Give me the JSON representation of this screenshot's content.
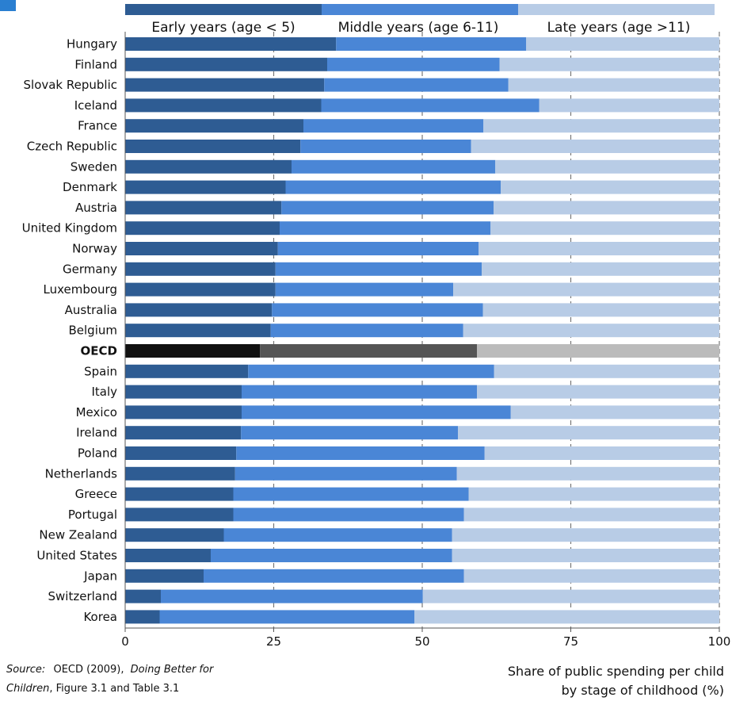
{
  "chart_data": {
    "type": "bar",
    "orientation": "horizontal",
    "stacked": true,
    "categories": [
      "Hungary",
      "Finland",
      "Slovak Republic",
      "Iceland",
      "France",
      "Czech Republic",
      "Sweden",
      "Denmark",
      "Austria",
      "United Kingdom",
      "Norway",
      "Germany",
      "Luxembourg",
      "Australia",
      "Belgium",
      "OECD",
      "Spain",
      "Italy",
      "Mexico",
      "Ireland",
      "Poland",
      "Netherlands",
      "Greece",
      "Portugal",
      "New Zealand",
      "United States",
      "Japan",
      "Switzerland",
      "Korea"
    ],
    "highlight_category": "OECD",
    "series": [
      {
        "name": "Early years (age < 5)",
        "color": "#2e5c93",
        "values": [
          35.5,
          34,
          33.5,
          33,
          30,
          29.5,
          28,
          27,
          26.3,
          26,
          25.7,
          25.3,
          25.3,
          24.7,
          24.5,
          22.7,
          20.7,
          19.6,
          19.6,
          19.5,
          18.7,
          18.5,
          18.2,
          18.2,
          16.6,
          14.4,
          13.2,
          6,
          5.8
        ]
      },
      {
        "name": "Middle years (age 6-11)",
        "color": "#4a86d6",
        "values": [
          32,
          29,
          31,
          36.7,
          30.3,
          28.7,
          34.3,
          36.2,
          35.7,
          35.5,
          33.8,
          34.7,
          29.9,
          35.5,
          32.4,
          36.5,
          41.4,
          39.6,
          45.3,
          36.5,
          41.8,
          37.3,
          39.6,
          38.8,
          38.4,
          40.6,
          43.8,
          44.1,
          42.9
        ]
      },
      {
        "name": "Late years (age >11)",
        "color": "#b8cce6",
        "values": [
          32.5,
          37,
          35.5,
          30.3,
          39.7,
          41.8,
          37.7,
          36.8,
          38,
          38.5,
          40.5,
          40,
          44.8,
          39.8,
          43.1,
          40.8,
          37.9,
          40.8,
          35.1,
          44,
          39.5,
          44.2,
          42.2,
          43,
          45,
          45,
          43,
          49.9,
          51.3
        ]
      }
    ],
    "highlight_colors": [
      "#111111",
      "#555555",
      "#bbbbbb"
    ],
    "xlim": [
      0,
      100
    ],
    "xticks": [
      0,
      25,
      50,
      75,
      100
    ],
    "grid": "vertical",
    "legend_placement": "top",
    "xlabel_line1": "Share of public spending per child",
    "xlabel_line2": "by stage of childhood (%)"
  },
  "source": {
    "prefix": "Source:",
    "text1": "OECD (2009),",
    "title1": "Doing Better for",
    "title2": "Children",
    "text2": ", Figure 3.1 and Table 3.1"
  },
  "accent_color": "#2a7fd1"
}
